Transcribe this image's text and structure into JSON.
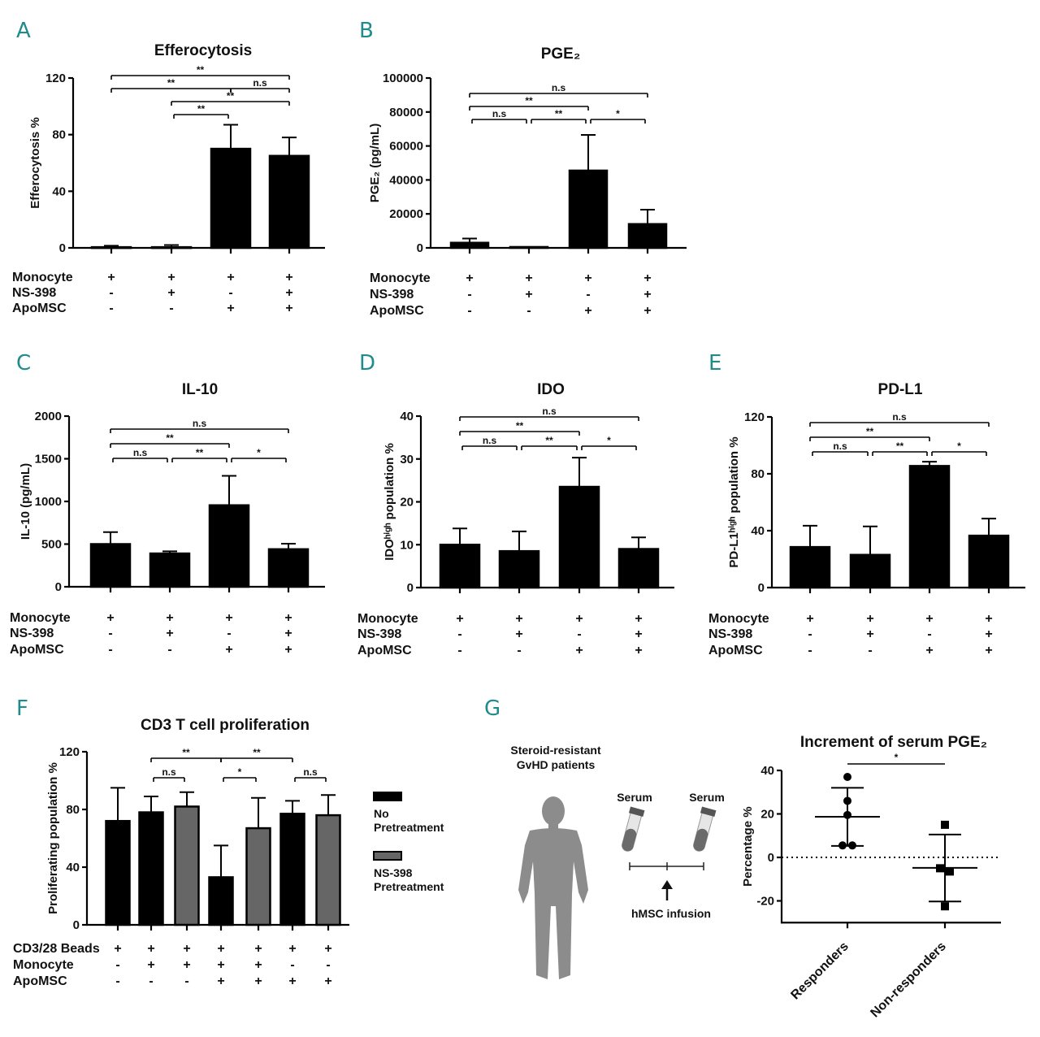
{
  "chart_data": [
    {
      "panel": "A",
      "type": "bar",
      "title": "Efferocytosis",
      "ylabel": "Efferocytosis %",
      "ylim": [
        0,
        120
      ],
      "yticks": [
        "0",
        "40",
        "80",
        "120"
      ],
      "ytick_values": [
        0,
        40,
        80,
        120
      ],
      "values": [
        0.5,
        0.5,
        70,
        65
      ],
      "errors": [
        1,
        1.5,
        17,
        13
      ],
      "colors": [
        "#000000",
        "#000000",
        "#000000",
        "#000000"
      ],
      "conditions": [
        {
          "label": "Monocyte",
          "marks": [
            "+",
            "+",
            "+",
            "+"
          ]
        },
        {
          "label": "NS-398",
          "marks": [
            "-",
            "+",
            "-",
            "+"
          ]
        },
        {
          "label": "ApoMSC",
          "marks": [
            "-",
            "-",
            "+",
            "+"
          ]
        }
      ],
      "significance": [
        {
          "from": 2,
          "to": 3,
          "label": "**",
          "tier": 0
        },
        {
          "from": 2,
          "to": 4,
          "label": "**",
          "tier": 1
        },
        {
          "from": 1,
          "to": 3,
          "label": "**",
          "tier": 2
        },
        {
          "from": 3,
          "to": 4,
          "label": "n.s",
          "tier": 2
        },
        {
          "from": 1,
          "to": 4,
          "label": "**",
          "tier": 3
        }
      ]
    },
    {
      "panel": "B",
      "type": "bar",
      "title": "PGE₂",
      "ylabel": "PGE₂ (pg/mL)",
      "ylim": [
        0,
        100000
      ],
      "yticks": [
        "0",
        "20000",
        "40000",
        "60000",
        "80000",
        "100000"
      ],
      "ytick_values": [
        0,
        20000,
        40000,
        60000,
        80000,
        100000
      ],
      "values": [
        3000,
        500,
        45500,
        14000
      ],
      "errors": [
        2500,
        0,
        21000,
        8500
      ],
      "colors": [
        "#000000",
        "#000000",
        "#000000",
        "#000000"
      ],
      "conditions": [
        {
          "label": "Monocyte",
          "marks": [
            "+",
            "+",
            "+",
            "+"
          ]
        },
        {
          "label": "NS-398",
          "marks": [
            "-",
            "+",
            "-",
            "+"
          ]
        },
        {
          "label": "ApoMSC",
          "marks": [
            "-",
            "-",
            "+",
            "+"
          ]
        }
      ],
      "significance": [
        {
          "from": 1,
          "to": 2,
          "label": "n.s",
          "tier": 0
        },
        {
          "from": 2,
          "to": 3,
          "label": "**",
          "tier": 0
        },
        {
          "from": 3,
          "to": 4,
          "label": "*",
          "tier": 0
        },
        {
          "from": 1,
          "to": 3,
          "label": "**",
          "tier": 1
        },
        {
          "from": 1,
          "to": 4,
          "label": "n.s",
          "tier": 2
        }
      ]
    },
    {
      "panel": "C",
      "type": "bar",
      "title": "IL-10",
      "ylabel": "IL-10 (pg/mL)",
      "ylim": [
        0,
        2000
      ],
      "yticks": [
        "0",
        "500",
        "1000",
        "1500",
        "2000"
      ],
      "ytick_values": [
        0,
        500,
        1000,
        1500,
        2000
      ],
      "values": [
        500,
        390,
        955,
        440
      ],
      "errors": [
        140,
        25,
        345,
        65
      ],
      "colors": [
        "#000000",
        "#000000",
        "#000000",
        "#000000"
      ],
      "conditions": [
        {
          "label": "Monocyte",
          "marks": [
            "+",
            "+",
            "+",
            "+"
          ]
        },
        {
          "label": "NS-398",
          "marks": [
            "-",
            "+",
            "-",
            "+"
          ]
        },
        {
          "label": "ApoMSC",
          "marks": [
            "-",
            "-",
            "+",
            "+"
          ]
        }
      ],
      "significance": [
        {
          "from": 1,
          "to": 2,
          "label": "n.s",
          "tier": 0
        },
        {
          "from": 2,
          "to": 3,
          "label": "**",
          "tier": 0
        },
        {
          "from": 3,
          "to": 4,
          "label": "*",
          "tier": 0
        },
        {
          "from": 1,
          "to": 3,
          "label": "**",
          "tier": 1
        },
        {
          "from": 1,
          "to": 4,
          "label": "n.s",
          "tier": 2
        }
      ]
    },
    {
      "panel": "D",
      "type": "bar",
      "title": "IDO",
      "ylabel": "IDOʰⁱᵍʰ population %",
      "ylim": [
        0,
        40
      ],
      "yticks": [
        "0",
        "10",
        "20",
        "30",
        "40"
      ],
      "ytick_values": [
        0,
        10,
        20,
        30,
        40
      ],
      "values": [
        10,
        8.5,
        23.5,
        9
      ],
      "errors": [
        3.8,
        4.6,
        6.8,
        2.7
      ],
      "colors": [
        "#000000",
        "#000000",
        "#000000",
        "#000000"
      ],
      "conditions": [
        {
          "label": "Monocyte",
          "marks": [
            "+",
            "+",
            "+",
            "+"
          ]
        },
        {
          "label": "NS-398",
          "marks": [
            "-",
            "+",
            "-",
            "+"
          ]
        },
        {
          "label": "ApoMSC",
          "marks": [
            "-",
            "-",
            "+",
            "+"
          ]
        }
      ],
      "significance": [
        {
          "from": 1,
          "to": 2,
          "label": "n.s",
          "tier": 0
        },
        {
          "from": 2,
          "to": 3,
          "label": "**",
          "tier": 0
        },
        {
          "from": 3,
          "to": 4,
          "label": "*",
          "tier": 0
        },
        {
          "from": 1,
          "to": 3,
          "label": "**",
          "tier": 1
        },
        {
          "from": 1,
          "to": 4,
          "label": "n.s",
          "tier": 2
        }
      ]
    },
    {
      "panel": "E",
      "type": "bar",
      "title": "PD-L1",
      "ylabel": "PD-L1ʰⁱᵍʰ population %",
      "ylim": [
        0,
        120
      ],
      "yticks": [
        "0",
        "40",
        "80",
        "120"
      ],
      "ytick_values": [
        0,
        40,
        80,
        120
      ],
      "values": [
        28.5,
        23,
        85.5,
        36.5
      ],
      "errors": [
        15,
        20,
        3,
        12
      ],
      "colors": [
        "#000000",
        "#000000",
        "#000000",
        "#000000"
      ],
      "conditions": [
        {
          "label": "Monocyte",
          "marks": [
            "+",
            "+",
            "+",
            "+"
          ]
        },
        {
          "label": "NS-398",
          "marks": [
            "-",
            "+",
            "-",
            "+"
          ]
        },
        {
          "label": "ApoMSC",
          "marks": [
            "-",
            "-",
            "+",
            "+"
          ]
        }
      ],
      "significance": [
        {
          "from": 1,
          "to": 2,
          "label": "n.s",
          "tier": 0
        },
        {
          "from": 2,
          "to": 3,
          "label": "**",
          "tier": 0
        },
        {
          "from": 3,
          "to": 4,
          "label": "*",
          "tier": 0
        },
        {
          "from": 1,
          "to": 3,
          "label": "**",
          "tier": 1
        },
        {
          "from": 1,
          "to": 4,
          "label": "n.s",
          "tier": 2
        }
      ]
    },
    {
      "panel": "F",
      "type": "bar",
      "title": "CD3 T cell proliferation",
      "ylabel": "Proliferating population %",
      "ylim": [
        0,
        120
      ],
      "yticks": [
        "0",
        "40",
        "80",
        "120"
      ],
      "ytick_values": [
        0,
        40,
        80,
        120
      ],
      "values": [
        72,
        78,
        82,
        33,
        67,
        77,
        76
      ],
      "errors": [
        23,
        11,
        10,
        22,
        21,
        9,
        14
      ],
      "colors": [
        "#000000",
        "#000000",
        "#666666",
        "#000000",
        "#666666",
        "#000000",
        "#666666"
      ],
      "legend": [
        {
          "label": "No Pretreatment",
          "lines": [
            "No",
            "Pretreatment"
          ],
          "color": "#000000"
        },
        {
          "label": "NS-398 Pretreatment",
          "lines": [
            "NS-398",
            "Pretreatment"
          ],
          "color": "#666666"
        }
      ],
      "legend_position": "right",
      "conditions": [
        {
          "label": "CD3/28 Beads",
          "marks": [
            "+",
            "+",
            "+",
            "+",
            "+",
            "+",
            "+"
          ]
        },
        {
          "label": "Monocyte",
          "marks": [
            "-",
            "+",
            "+",
            "+",
            "+",
            "-",
            "-"
          ]
        },
        {
          "label": "ApoMSC",
          "marks": [
            "-",
            "-",
            "-",
            "+",
            "+",
            "+",
            "+"
          ]
        }
      ],
      "significance": [
        {
          "from": 2,
          "to": 3,
          "label": "n.s",
          "tier": 0
        },
        {
          "from": 4,
          "to": 5,
          "label": "*",
          "tier": 0
        },
        {
          "from": 6,
          "to": 7,
          "label": "n.s",
          "tier": 0
        },
        {
          "from": 2,
          "to": 4,
          "label": "**",
          "tier": 1
        },
        {
          "from": 4,
          "to": 6,
          "label": "**",
          "tier": 1
        }
      ]
    },
    {
      "panel": "G",
      "type": "scatter",
      "title": "Increment of serum PGE₂",
      "ylabel": "Percentage %",
      "ylim": [
        -30,
        40
      ],
      "yticks": [
        "-20",
        "0",
        "20",
        "40"
      ],
      "ytick_values": [
        -20,
        0,
        20,
        40
      ],
      "categories": [
        "Responders",
        "Non-responders"
      ],
      "series": [
        {
          "name": "Responders",
          "marker": "circle",
          "values": [
            37,
            26,
            19.5,
            5.5,
            5.5
          ],
          "mean": 18.7,
          "sd_upper": 32,
          "sd_lower": 5.3
        },
        {
          "name": "Non-responders",
          "marker": "square",
          "values": [
            15,
            -5,
            -6.5,
            -22.5
          ],
          "mean": -4.8,
          "sd_upper": 10.5,
          "sd_lower": -20.3
        }
      ],
      "reference_line": 0,
      "significance": [
        {
          "from": 1,
          "to": 2,
          "label": "*"
        }
      ]
    }
  ],
  "panel_letters": [
    "A",
    "B",
    "C",
    "D",
    "E",
    "F",
    "G"
  ],
  "diagram": {
    "patients_label_1": "Steroid-resistant",
    "patients_label_2": "GvHD patients",
    "serum_before": "Serum",
    "serum_after": "Serum",
    "infusion_label": "hMSC infusion"
  },
  "colors": {
    "letter": "#1f8b8b",
    "black_bar": "#000000",
    "grey_bar": "#666666",
    "figure": "#8c8c8c"
  }
}
